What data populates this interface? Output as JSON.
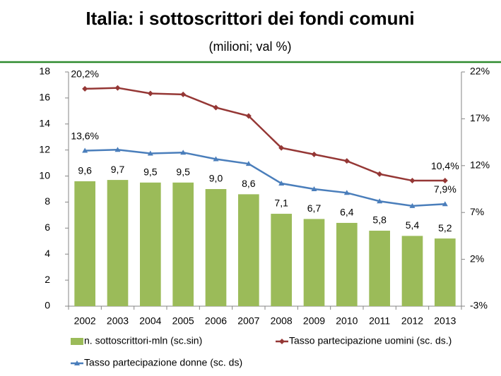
{
  "chart_data": {
    "type": "bar",
    "title": "Italia: i sottoscrittori dei fondi comuni",
    "subtitle": "(milioni; val %)",
    "categories": [
      "2002",
      "2003",
      "2004",
      "2005",
      "2006",
      "2007",
      "2008",
      "2009",
      "2010",
      "2011",
      "2012",
      "2013"
    ],
    "ylim": [
      0,
      18
    ],
    "yticks": [
      0,
      2,
      4,
      6,
      8,
      10,
      12,
      14,
      16,
      18
    ],
    "y2lim": [
      -3,
      22
    ],
    "y2ticks": [
      {
        "value": -3,
        "label": "-3%"
      },
      {
        "value": 2,
        "label": "2%"
      },
      {
        "value": 7,
        "label": "7%"
      },
      {
        "value": 12,
        "label": "12%"
      },
      {
        "value": 17,
        "label": "17%"
      },
      {
        "value": 22,
        "label": "22%"
      }
    ],
    "series": [
      {
        "name": "n. sottoscrittori-mln (sc.sin)",
        "type": "bar",
        "color": "#9bbb59",
        "values": [
          9.6,
          9.7,
          9.5,
          9.5,
          9.0,
          8.6,
          7.1,
          6.7,
          6.4,
          5.8,
          5.4,
          5.2
        ],
        "value_labels": [
          "9,6",
          "9,7",
          "9,5",
          "9,5",
          "9,0",
          "8,6",
          "7,1",
          "6,7",
          "6,4",
          "5,8",
          "5,4",
          "5,2"
        ]
      },
      {
        "name": "Tasso partecipazione uomini (sc. ds.)",
        "type": "line",
        "axis": "y2",
        "color": "#953735",
        "marker": "diamond",
        "values": [
          20.2,
          20.3,
          19.7,
          19.6,
          18.2,
          17.3,
          13.9,
          13.2,
          12.5,
          11.1,
          10.4,
          10.4
        ],
        "value_labels": [
          "20,2%",
          null,
          null,
          null,
          null,
          null,
          null,
          null,
          null,
          null,
          null,
          "10,4%"
        ]
      },
      {
        "name": "Tasso partecipazione donne (sc. ds)",
        "type": "line",
        "axis": "y2",
        "color": "#4a7ebb",
        "marker": "triangle",
        "values": [
          13.6,
          13.7,
          13.3,
          13.4,
          12.7,
          12.2,
          10.1,
          9.5,
          9.1,
          8.2,
          7.7,
          7.9
        ],
        "value_labels": [
          "13,6%",
          null,
          null,
          null,
          null,
          null,
          null,
          null,
          null,
          null,
          null,
          "7,9%"
        ]
      }
    ]
  }
}
